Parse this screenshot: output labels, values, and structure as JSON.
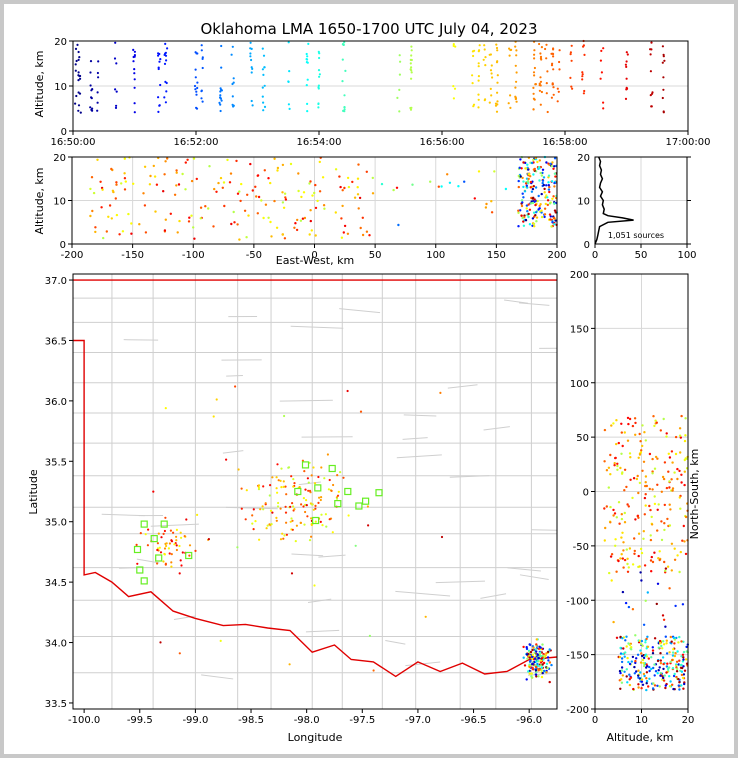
{
  "chart_data": [
    {
      "panel": "time-altitude",
      "type": "scatter",
      "title": "Oklahoma LMA 1650-1700 UTC July 04, 2023",
      "ylabel": "Altitude, km",
      "xlim": [
        "16:50:00",
        "17:00:00"
      ],
      "ylim": [
        0,
        20
      ],
      "xticks": [
        "16:50:00",
        "16:52:00",
        "16:54:00",
        "16:56:00",
        "16:58:00",
        "17:00:00"
      ],
      "yticks": [
        "0",
        "10",
        "20"
      ],
      "color_by": "time"
    },
    {
      "panel": "east-west-altitude",
      "type": "scatter",
      "xlabel": "East-West, km",
      "ylabel": "Altitude, km",
      "xlim": [
        -200,
        200
      ],
      "ylim": [
        0,
        20
      ],
      "xticks": [
        "-200",
        "-150",
        "-100",
        "-50",
        "0",
        "50",
        "100",
        "150",
        "200"
      ],
      "yticks": [
        "0",
        "10",
        "20"
      ]
    },
    {
      "panel": "altitude-histogram",
      "type": "line",
      "annotation": "1,051 sources",
      "xlim": [
        0,
        100
      ],
      "ylim": [
        0,
        20
      ],
      "xticks": [
        "0",
        "50",
        "100"
      ],
      "yticks": [
        "0",
        "10",
        "20"
      ]
    },
    {
      "panel": "plan-view-map",
      "type": "scatter",
      "xlabel": "Longitude",
      "ylabel": "Latitude",
      "xlim": [
        -100.1,
        -95.75
      ],
      "ylim": [
        33.45,
        37.05
      ],
      "xticks": [
        "-100.0",
        "-99.5",
        "-99.0",
        "-98.5",
        "-98.0",
        "-97.5",
        "-97.0",
        "-96.5",
        "-96.0"
      ],
      "yticks": [
        "33.5",
        "34.0",
        "34.5",
        "35.0",
        "35.5",
        "36.0",
        "36.5",
        "37.0"
      ],
      "stations": [
        {
          "lon": -99.28,
          "lat": 34.98
        },
        {
          "lon": -99.46,
          "lat": 34.98
        },
        {
          "lon": -99.37,
          "lat": 34.86
        },
        {
          "lon": -99.52,
          "lat": 34.77
        },
        {
          "lon": -99.33,
          "lat": 34.7
        },
        {
          "lon": -99.06,
          "lat": 34.72
        },
        {
          "lon": -99.5,
          "lat": 34.6
        },
        {
          "lon": -99.46,
          "lat": 34.51
        },
        {
          "lon": -98.01,
          "lat": 35.47
        },
        {
          "lon": -97.77,
          "lat": 35.44
        },
        {
          "lon": -98.08,
          "lat": 35.25
        },
        {
          "lon": -97.9,
          "lat": 35.28
        },
        {
          "lon": -97.63,
          "lat": 35.25
        },
        {
          "lon": -97.35,
          "lat": 35.24
        },
        {
          "lon": -97.47,
          "lat": 35.17
        },
        {
          "lon": -97.72,
          "lat": 35.15
        },
        {
          "lon": -97.53,
          "lat": 35.13
        },
        {
          "lon": -97.92,
          "lat": 35.01
        }
      ]
    },
    {
      "panel": "altitude-north-south",
      "type": "scatter",
      "xlabel": "Altitude, km",
      "ylabel": "North-South, km",
      "xlim": [
        0,
        20
      ],
      "ylim": [
        -200,
        200
      ],
      "xticks": [
        "0",
        "10",
        "20"
      ],
      "yticks": [
        "-200",
        "-150",
        "-100",
        "-50",
        "0",
        "50",
        "100",
        "150",
        "200"
      ]
    }
  ]
}
